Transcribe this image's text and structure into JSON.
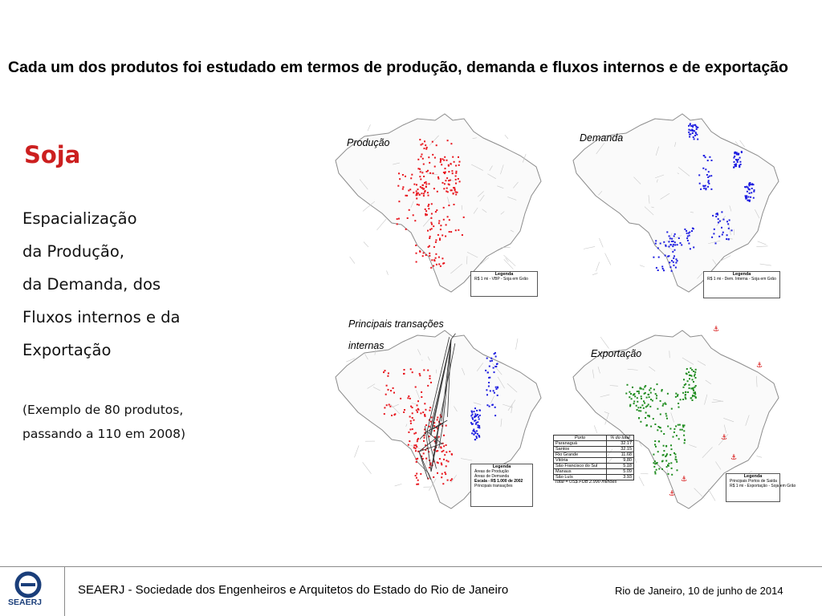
{
  "slide": {
    "title": "Cada um dos produtos foi estudado em termos de produção, demanda e fluxos internos e de exportação",
    "subtitle": "Soja",
    "body": [
      "Espacialização",
      "da Produção,",
      "da Demanda, dos",
      "Fluxos internos e da",
      "Exportação"
    ],
    "note": [
      "(Exemplo de 80 produtos,",
      "passando a 110 em 2008)"
    ]
  },
  "maps": {
    "production": {
      "label": "Produção",
      "color": "#e8141c",
      "legend_title": "Legenda",
      "legend_item": "R$ 1 mi - VBP - Soja em Grão"
    },
    "demand": {
      "label": "Demanda",
      "color": "#1c1ce0",
      "legend_title": "Legenda",
      "legend_item": "R$ 1 mi - Dem. Interna - Soja em Grão"
    },
    "flows": {
      "label_line1": "Principais transações",
      "label_line2": "internas",
      "legend_title": "Legenda",
      "legend_items": [
        "Áreas de Produção",
        "Áreas de Demanda"
      ],
      "scale_label": "Escala - R$ 1.000 de 2002",
      "flows_label": "Principais transações"
    },
    "export": {
      "label": "Exportação",
      "color": "#1e8c1e",
      "legend_title": "Legenda",
      "legend_item1": "Principais Portos de Saída",
      "legend_item2": "R$ 1 mi - Exportação - Soja em Grão",
      "table_headers": [
        "Porto",
        "% do total"
      ],
      "ports": [
        {
          "name": "Paranaguá",
          "value": "32.17"
        },
        {
          "name": "Santos",
          "value": "32.15"
        },
        {
          "name": "Rio Grande",
          "value": "11.68"
        },
        {
          "name": "Vitória",
          "value": "9.80"
        },
        {
          "name": "São Francisco do Sul",
          "value": "5.18"
        },
        {
          "name": "Manaus",
          "value": "5.09"
        },
        {
          "name": "São Luís",
          "value": "3.93"
        }
      ],
      "total": "Total = US$ FOB 2.990 milhões"
    }
  },
  "footer": {
    "logo_text": "SEAERJ",
    "organization": "SEAERJ - Sociedade dos Engenheiros e Arquitetos do Estado do Rio de Janeiro",
    "date": "Rio de Janeiro, 10 de junho de 2014"
  },
  "colors": {
    "subtitle": "#cc1f1f",
    "logo": "#1a3e7a"
  }
}
